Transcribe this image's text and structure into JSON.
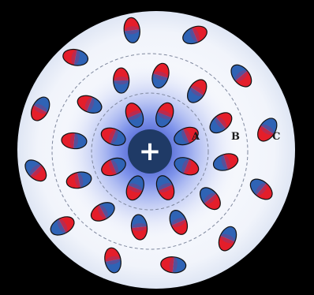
{
  "labels": {
    "shell_a": "A",
    "shell_b": "B",
    "shell_c": "C",
    "ion_sign": "+"
  },
  "colors": {
    "outer_background": "#000000",
    "disc_fill": "#f3f5fb",
    "glow": "#2a3fd6",
    "ion_fill": "#1f3a66",
    "ion_sign": "#ffffff",
    "dipole_positive": "#e41e2a",
    "dipole_negative": "#2f63b5",
    "dipole_outline": "#111111",
    "shell_line": "#8a93a8"
  },
  "shells": [
    "A",
    "B",
    "C"
  ],
  "dipole_counts": {
    "shell_a": 8,
    "shell_b": 12,
    "shell_c": 12
  }
}
